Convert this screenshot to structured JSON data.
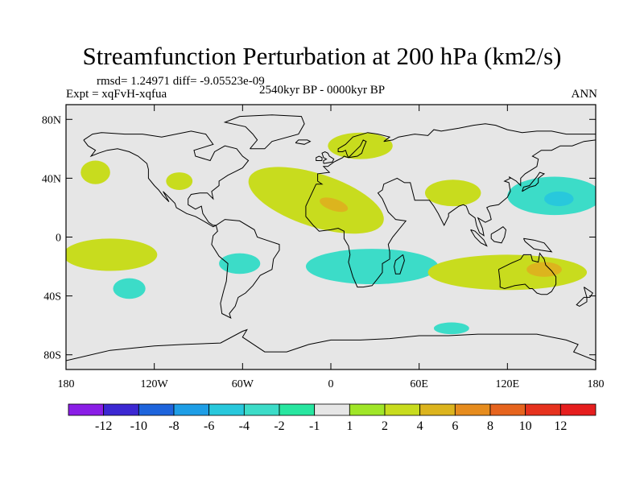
{
  "chart_data": {
    "type": "heatmap",
    "title": "Streamfunction Perturbation at 200 hPa (km2/s)",
    "stats_line": "rmsd= 1.24971 diff= -9.05523e-09",
    "experiment_label": "Expt = xqFvH-xqfua",
    "period_label": "2540kyr BP - 0000kyr BP",
    "season_label": "ANN",
    "x_axis": {
      "range": [
        -180,
        180
      ],
      "ticks": [
        {
          "value": -180,
          "label": "180"
        },
        {
          "value": -120,
          "label": "120W"
        },
        {
          "value": -60,
          "label": "60W"
        },
        {
          "value": 0,
          "label": "0"
        },
        {
          "value": 60,
          "label": "60E"
        },
        {
          "value": 120,
          "label": "120E"
        },
        {
          "value": 180,
          "label": "180"
        }
      ]
    },
    "y_axis": {
      "range": [
        -90,
        90
      ],
      "ticks": [
        {
          "value": 80,
          "label": "80N"
        },
        {
          "value": 40,
          "label": "40N"
        },
        {
          "value": 0,
          "label": "0"
        },
        {
          "value": -40,
          "label": "40S"
        },
        {
          "value": -80,
          "label": "80S"
        }
      ]
    },
    "colorbar": {
      "colors": [
        "#8a1ee6",
        "#3c28d2",
        "#1e64dc",
        "#1e9ee6",
        "#28c8dc",
        "#3cdcc8",
        "#28e6a0",
        "#e6e6e6",
        "#a0e628",
        "#c8dc1e",
        "#dcb41e",
        "#e68c1e",
        "#e6641e",
        "#e6321e",
        "#e61e1e"
      ],
      "labels": [
        "-12",
        "-10",
        "-8",
        "-6",
        "-4",
        "-2",
        "-1",
        "1",
        "2",
        "4",
        "6",
        "8",
        "10",
        "12"
      ]
    },
    "background_color": "#e6e6e6",
    "features": [
      {
        "name": "north-atlantic-africa-high",
        "lon": -10,
        "lat": 25,
        "rx": 48,
        "ry": 18,
        "rot": 18,
        "level": 2,
        "core": {
          "lon": 2,
          "lat": 22,
          "rx": 10,
          "ry": 4,
          "level": 4
        }
      },
      {
        "name": "scandinavia-high",
        "lon": 20,
        "lat": 62,
        "rx": 22,
        "ry": 9,
        "rot": 0,
        "level": 2
      },
      {
        "name": "north-pacific-west-high",
        "lon": -160,
        "lat": 44,
        "rx": 10,
        "ry": 8,
        "rot": 0,
        "level": 2
      },
      {
        "name": "north-america-east-high",
        "lon": -103,
        "lat": 38,
        "rx": 9,
        "ry": 6,
        "rot": 0,
        "level": 2
      },
      {
        "name": "india-high",
        "lon": 83,
        "lat": 30,
        "rx": 19,
        "ry": 9,
        "rot": 0,
        "level": 2
      },
      {
        "name": "kuroshio-low",
        "lon": 152,
        "lat": 28,
        "rx": 32,
        "ry": 13,
        "rot": 0,
        "level": -2,
        "core": {
          "lon": 155,
          "lat": 26,
          "rx": 10,
          "ry": 5,
          "level": -4
        }
      },
      {
        "name": "east-pacific-equatorial-high",
        "lon": -150,
        "lat": -12,
        "rx": 32,
        "ry": 11,
        "rot": 0,
        "level": 2
      },
      {
        "name": "pacific-subantarctic-low",
        "lon": -137,
        "lat": -35,
        "rx": 11,
        "ry": 7,
        "rot": 0,
        "level": -2
      },
      {
        "name": "south-america-low",
        "lon": -62,
        "lat": -18,
        "rx": 14,
        "ry": 7,
        "rot": 0,
        "level": -2
      },
      {
        "name": "south-atlantic-indian-low",
        "lon": 28,
        "lat": -20,
        "rx": 45,
        "ry": 12,
        "rot": 0,
        "level": -2
      },
      {
        "name": "australia-high",
        "lon": 120,
        "lat": -24,
        "rx": 54,
        "ry": 12,
        "rot": 0,
        "level": 2,
        "core": {
          "lon": 145,
          "lat": -22,
          "rx": 12,
          "ry": 5,
          "level": 4
        }
      },
      {
        "name": "antarctic-low",
        "lon": 82,
        "lat": -62,
        "rx": 12,
        "ry": 4,
        "rot": 0,
        "level": -2
      }
    ]
  }
}
